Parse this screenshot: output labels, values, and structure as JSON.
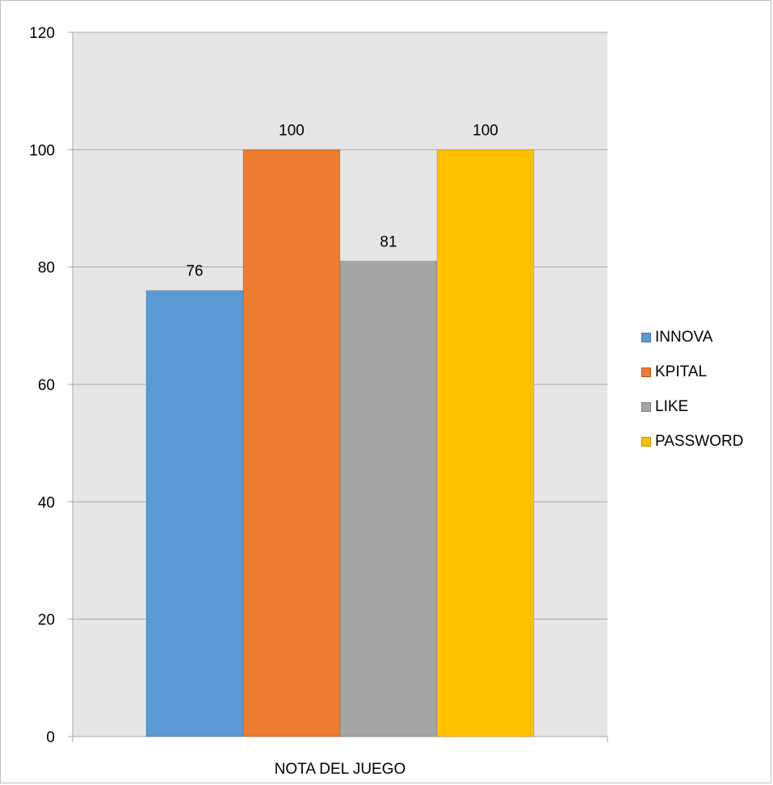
{
  "chart_data": {
    "type": "bar",
    "title": "",
    "xlabel": "",
    "ylabel": "",
    "categories": [
      "NOTA DEL JUEGO"
    ],
    "series": [
      {
        "name": "INNOVA",
        "values": [
          76
        ],
        "color": "#5b9bd5"
      },
      {
        "name": "KPITAL",
        "values": [
          100
        ],
        "color": "#ed7d31"
      },
      {
        "name": "LIKE",
        "values": [
          81
        ],
        "color": "#a5a5a5"
      },
      {
        "name": "PASSWORD",
        "values": [
          100
        ],
        "color": "#ffc000"
      }
    ],
    "ylim": [
      0,
      120
    ],
    "yticks": [
      "0",
      "20",
      "40",
      "60",
      "80",
      "100",
      "120"
    ],
    "data_labels": [
      "76",
      "100",
      "81",
      "100"
    ],
    "grid": true,
    "legend_position": "right",
    "plot_background": "#e7e6e6"
  }
}
